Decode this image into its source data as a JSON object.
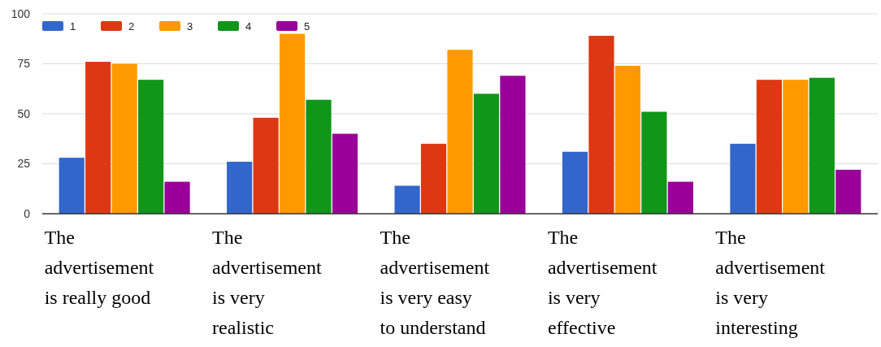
{
  "chart_data": {
    "type": "bar",
    "categories": [
      "The advertisement is really good",
      "The advertisement is very realistic",
      "The advertisement is very easy to understand",
      "The advertisement is very effective",
      "The advertisement is very interesting"
    ],
    "series": [
      {
        "name": "1",
        "color": "#3366cc",
        "values": [
          28,
          26,
          14,
          31,
          35
        ]
      },
      {
        "name": "2",
        "color": "#dc3912",
        "values": [
          76,
          48,
          35,
          89,
          67
        ]
      },
      {
        "name": "3",
        "color": "#ff9900",
        "values": [
          75,
          90,
          82,
          74,
          67
        ]
      },
      {
        "name": "4",
        "color": "#109618",
        "values": [
          67,
          57,
          60,
          51,
          68
        ]
      },
      {
        "name": "5",
        "color": "#990099",
        "values": [
          16,
          40,
          69,
          16,
          22
        ]
      }
    ],
    "ylim": [
      0,
      100
    ],
    "yticks": [
      0,
      25,
      50,
      75,
      100
    ],
    "grid": "y",
    "legend": "top left"
  }
}
